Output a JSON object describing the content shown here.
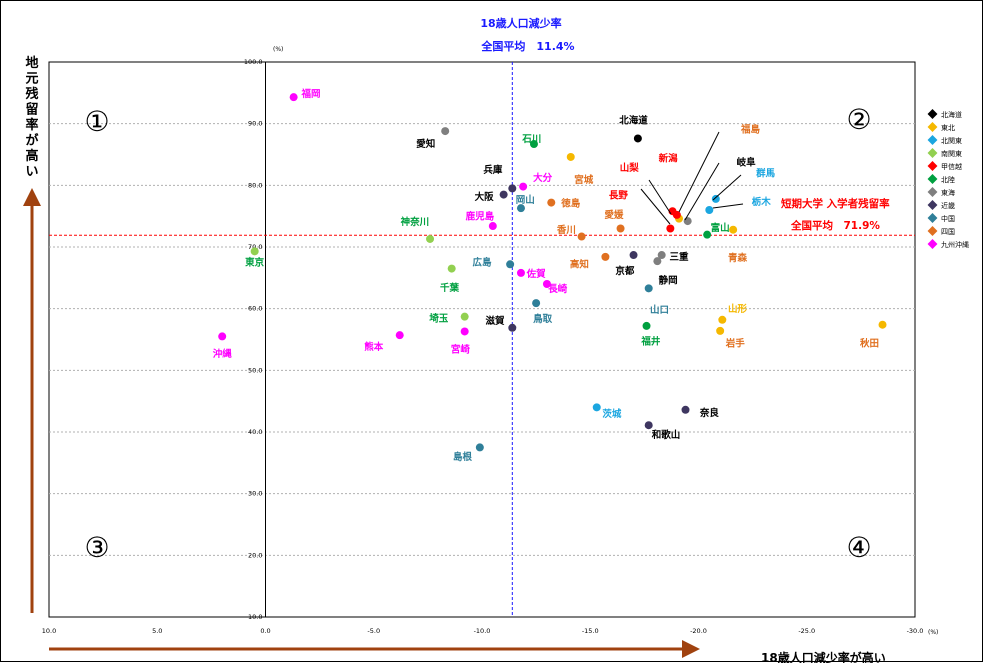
{
  "chart_data": {
    "type": "scatter",
    "top_label": "18歳人口減少率",
    "national_avg_x_label": "全国平均　11.4%",
    "national_avg_y_label": "全国平均　71.9%",
    "y_series_label": "短期大学 入学者残留率",
    "y_axis_title": "地元残留率が高い",
    "x_axis_title": "18歳人口減少率が高い",
    "x_unit": "(%)",
    "y_unit": "(%)",
    "xlim": [
      10,
      -30
    ],
    "ylim": [
      10,
      100
    ],
    "x_ticks": [
      "10.0",
      "5.0",
      "0.0",
      "-5.0",
      "-10.0",
      "-15.0",
      "-20.0",
      "-25.0",
      "-30.0"
    ],
    "y_ticks": [
      "10.0",
      "20.0",
      "30.0",
      "40.0",
      "50.0",
      "60.0",
      "70.0",
      "80.0",
      "90.0",
      "100.0"
    ],
    "grid": "horizontal",
    "avg_x": -11.4,
    "avg_y": 71.9,
    "quadrants": [
      "①",
      "②",
      "③",
      "④"
    ],
    "legend": [
      {
        "name": "北海道",
        "color": "#000000"
      },
      {
        "name": "東北",
        "color": "#f5b800"
      },
      {
        "name": "北関東",
        "color": "#1ba6e0"
      },
      {
        "name": "南関東",
        "color": "#92d050"
      },
      {
        "name": "甲信越",
        "color": "#ff0000"
      },
      {
        "name": "北陸",
        "color": "#00a040"
      },
      {
        "name": "東海",
        "color": "#7f7f7f"
      },
      {
        "name": "近畿",
        "color": "#3e3660"
      },
      {
        "name": "中国",
        "color": "#2f7f99"
      },
      {
        "name": "四国",
        "color": "#e07020"
      },
      {
        "name": "九州沖縄",
        "color": "#ff00ff"
      }
    ],
    "points": [
      {
        "name": "北海道",
        "x": -17.2,
        "y": 87.6,
        "region": 0
      },
      {
        "name": "青森",
        "x": -21.6,
        "y": 72.8,
        "region": 1
      },
      {
        "name": "岩手",
        "x": -21.0,
        "y": 56.4,
        "region": 1
      },
      {
        "name": "宮城",
        "x": -14.1,
        "y": 84.6,
        "region": 1
      },
      {
        "name": "秋田",
        "x": -28.5,
        "y": 57.4,
        "region": 1
      },
      {
        "name": "山形",
        "x": -21.1,
        "y": 58.2,
        "region": 1
      },
      {
        "name": "福島",
        "x": -19.1,
        "y": 74.6,
        "region": 1
      },
      {
        "name": "茨城",
        "x": -15.3,
        "y": 44.0,
        "region": 2
      },
      {
        "name": "栃木",
        "x": -20.5,
        "y": 76.0,
        "region": 2
      },
      {
        "name": "群馬",
        "x": -20.8,
        "y": 77.8,
        "region": 2
      },
      {
        "name": "埼玉",
        "x": -9.2,
        "y": 58.7,
        "region": 3
      },
      {
        "name": "千葉",
        "x": -8.6,
        "y": 66.5,
        "region": 3
      },
      {
        "name": "東京",
        "x": 0.5,
        "y": 69.3,
        "region": 3
      },
      {
        "name": "神奈川",
        "x": -7.6,
        "y": 71.3,
        "region": 3
      },
      {
        "name": "新潟",
        "x": -19.0,
        "y": 75.2,
        "region": 4
      },
      {
        "name": "富山",
        "x": -20.4,
        "y": 72.0,
        "region": 5
      },
      {
        "name": "石川",
        "x": -12.4,
        "y": 86.7,
        "region": 5
      },
      {
        "name": "福井",
        "x": -17.6,
        "y": 57.2,
        "region": 5
      },
      {
        "name": "山梨",
        "x": -18.8,
        "y": 75.8,
        "region": 4
      },
      {
        "name": "長野",
        "x": -18.7,
        "y": 73.0,
        "region": 4
      },
      {
        "name": "岐阜",
        "x": -19.5,
        "y": 74.2,
        "region": 6
      },
      {
        "name": "静岡",
        "x": -18.1,
        "y": 67.7,
        "region": 6
      },
      {
        "name": "愛知",
        "x": -8.3,
        "y": 88.8,
        "region": 6
      },
      {
        "name": "三重",
        "x": -18.3,
        "y": 68.7,
        "region": 6
      },
      {
        "name": "滋賀",
        "x": -11.4,
        "y": 56.9,
        "region": 7
      },
      {
        "name": "京都",
        "x": -17.0,
        "y": 68.7,
        "region": 7
      },
      {
        "name": "大阪",
        "x": -11.0,
        "y": 78.5,
        "region": 7
      },
      {
        "name": "兵庫",
        "x": -11.4,
        "y": 79.5,
        "region": 7
      },
      {
        "name": "奈良",
        "x": -19.4,
        "y": 43.6,
        "region": 7
      },
      {
        "name": "和歌山",
        "x": -17.7,
        "y": 41.1,
        "region": 7
      },
      {
        "name": "鳥取",
        "x": -12.5,
        "y": 60.9,
        "region": 8
      },
      {
        "name": "島根",
        "x": -9.9,
        "y": 37.5,
        "region": 8
      },
      {
        "name": "岡山",
        "x": -11.8,
        "y": 76.3,
        "region": 8
      },
      {
        "name": "広島",
        "x": -11.3,
        "y": 67.2,
        "region": 8
      },
      {
        "name": "山口",
        "x": -17.7,
        "y": 63.3,
        "region": 8
      },
      {
        "name": "徳島",
        "x": -13.2,
        "y": 77.2,
        "region": 9
      },
      {
        "name": "香川",
        "x": -14.6,
        "y": 71.7,
        "region": 9
      },
      {
        "name": "愛媛",
        "x": -16.4,
        "y": 73.0,
        "region": 9
      },
      {
        "name": "高知",
        "x": -15.7,
        "y": 68.4,
        "region": 9
      },
      {
        "name": "福岡",
        "x": -1.3,
        "y": 94.3,
        "region": 10
      },
      {
        "name": "佐賀",
        "x": -11.8,
        "y": 65.8,
        "region": 10
      },
      {
        "name": "長崎",
        "x": -13.0,
        "y": 64.0,
        "region": 10
      },
      {
        "name": "熊本",
        "x": -6.2,
        "y": 55.7,
        "region": 10
      },
      {
        "name": "大分",
        "x": -11.9,
        "y": 79.8,
        "region": 10
      },
      {
        "name": "宮崎",
        "x": -9.2,
        "y": 56.3,
        "region": 10
      },
      {
        "name": "鹿児島",
        "x": -10.5,
        "y": 73.4,
        "region": 10
      },
      {
        "name": "沖縄",
        "x": 2.0,
        "y": 55.5,
        "region": 10
      }
    ],
    "labels": [
      {
        "text": "北海道",
        "x": -17.0,
        "y": 90.0,
        "color": "#000000"
      },
      {
        "text": "福岡",
        "x": -2.1,
        "y": 94.3,
        "color": "#ff00ff"
      },
      {
        "text": "愛知",
        "x": -7.4,
        "y": 86.2,
        "color": "#000000"
      },
      {
        "text": "石川",
        "x": -12.3,
        "y": 87.0,
        "color": "#00a040"
      },
      {
        "text": "宮城",
        "x": -14.7,
        "y": 80.4,
        "color": "#e07020"
      },
      {
        "text": "兵庫",
        "x": -10.5,
        "y": 82.0,
        "color": "#000000"
      },
      {
        "text": "大分",
        "x": -12.8,
        "y": 80.7,
        "color": "#ff00ff"
      },
      {
        "text": "大阪",
        "x": -10.1,
        "y": 77.6,
        "color": "#000000"
      },
      {
        "text": "岡山",
        "x": -12.0,
        "y": 77.1,
        "color": "#2f7f99"
      },
      {
        "text": "徳島",
        "x": -14.1,
        "y": 76.6,
        "color": "#e07020"
      },
      {
        "text": "愛媛",
        "x": -16.1,
        "y": 74.7,
        "color": "#e07020"
      },
      {
        "text": "香川",
        "x": -13.9,
        "y": 72.3,
        "color": "#e07020"
      },
      {
        "text": "鹿児島",
        "x": -9.9,
        "y": 74.5,
        "color": "#ff00ff"
      },
      {
        "text": "神奈川",
        "x": -6.9,
        "y": 73.6,
        "color": "#00a040"
      },
      {
        "text": "東京",
        "x": 0.5,
        "y": 67.0,
        "color": "#00a040"
      },
      {
        "text": "広島",
        "x": -10.0,
        "y": 67.0,
        "color": "#2f7f99"
      },
      {
        "text": "佐賀",
        "x": -12.5,
        "y": 65.1,
        "color": "#ff00ff"
      },
      {
        "text": "高知",
        "x": -14.5,
        "y": 66.7,
        "color": "#e07020"
      },
      {
        "text": "長崎",
        "x": -13.5,
        "y": 62.7,
        "color": "#ff00ff"
      },
      {
        "text": "京都",
        "x": -16.6,
        "y": 65.6,
        "color": "#000000"
      },
      {
        "text": "三重",
        "x": -19.1,
        "y": 67.9,
        "color": "#000000"
      },
      {
        "text": "静岡",
        "x": -18.6,
        "y": 64.1,
        "color": "#000000"
      },
      {
        "text": "千葉",
        "x": -8.5,
        "y": 62.9,
        "color": "#00a040"
      },
      {
        "text": "鳥取",
        "x": -12.8,
        "y": 57.8,
        "color": "#2f7f99"
      },
      {
        "text": "埼玉",
        "x": -8.0,
        "y": 57.9,
        "color": "#00a040"
      },
      {
        "text": "滋賀",
        "x": -10.6,
        "y": 57.5,
        "color": "#000000"
      },
      {
        "text": "熊本",
        "x": -5.0,
        "y": 53.3,
        "color": "#ff00ff"
      },
      {
        "text": "宮崎",
        "x": -9.0,
        "y": 52.9,
        "color": "#ff00ff"
      },
      {
        "text": "沖縄",
        "x": 2.0,
        "y": 52.2,
        "color": "#ff00ff"
      },
      {
        "text": "山口",
        "x": -18.2,
        "y": 59.3,
        "color": "#2f7f99"
      },
      {
        "text": "福井",
        "x": -17.8,
        "y": 54.2,
        "color": "#00a040"
      },
      {
        "text": "山形",
        "x": -21.8,
        "y": 59.5,
        "color": "#f5b800"
      },
      {
        "text": "岩手",
        "x": -21.7,
        "y": 53.9,
        "color": "#e07020"
      },
      {
        "text": "秋田",
        "x": -27.9,
        "y": 53.9,
        "color": "#e07020"
      },
      {
        "text": "青森",
        "x": -21.8,
        "y": 67.7,
        "color": "#e07020"
      },
      {
        "text": "茨城",
        "x": -16.0,
        "y": 42.4,
        "color": "#1ba6e0"
      },
      {
        "text": "奈良",
        "x": -20.5,
        "y": 42.6,
        "color": "#000000"
      },
      {
        "text": "和歌山",
        "x": -18.5,
        "y": 39.0,
        "color": "#000000"
      },
      {
        "text": "島根",
        "x": -9.1,
        "y": 35.5,
        "color": "#2f7f99"
      },
      {
        "text": "福島",
        "x": -22.4,
        "y": 88.6,
        "color": "#e07020"
      },
      {
        "text": "新潟",
        "x": -18.6,
        "y": 83.9,
        "color": "#ff0000"
      },
      {
        "text": "岐阜",
        "x": -22.2,
        "y": 83.2,
        "color": "#000000"
      },
      {
        "text": "山梨",
        "x": -16.8,
        "y": 82.3,
        "color": "#ff0000"
      },
      {
        "text": "群馬",
        "x": -23.1,
        "y": 81.4,
        "color": "#1ba6e0"
      },
      {
        "text": "長野",
        "x": -16.3,
        "y": 77.9,
        "color": "#ff0000"
      },
      {
        "text": "栃木",
        "x": -22.9,
        "y": 76.8,
        "color": "#1ba6e0"
      },
      {
        "text": "富山",
        "x": -21.0,
        "y": 72.6,
        "color": "#00a040"
      }
    ]
  }
}
